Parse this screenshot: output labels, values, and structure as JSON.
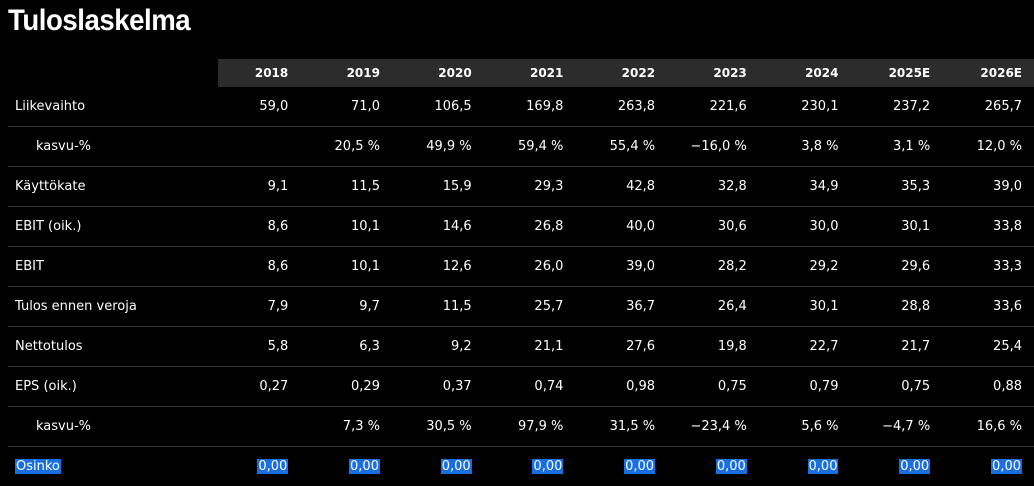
{
  "title": "Tuloslaskelma",
  "years": [
    "2018",
    "2019",
    "2020",
    "2021",
    "2022",
    "2023",
    "2024",
    "2025E",
    "2026E"
  ],
  "rows": [
    {
      "label": "Liikevaihto",
      "values": [
        "59,0",
        "71,0",
        "106,5",
        "169,8",
        "263,8",
        "221,6",
        "230,1",
        "237,2",
        "265,7"
      ]
    },
    {
      "label": "kasvu-%",
      "sub": true,
      "values": [
        "",
        "20,5 %",
        "49,9 %",
        "59,4 %",
        "55,4 %",
        "−16,0 %",
        "3,8 %",
        "3,1 %",
        "12,0 %"
      ]
    },
    {
      "label": "Käyttökate",
      "values": [
        "9,1",
        "11,5",
        "15,9",
        "29,3",
        "42,8",
        "32,8",
        "34,9",
        "35,3",
        "39,0"
      ]
    },
    {
      "label": "EBIT (oik.)",
      "values": [
        "8,6",
        "10,1",
        "14,6",
        "26,8",
        "40,0",
        "30,6",
        "30,0",
        "30,1",
        "33,8"
      ]
    },
    {
      "label": "EBIT",
      "values": [
        "8,6",
        "10,1",
        "12,6",
        "26,0",
        "39,0",
        "28,2",
        "29,2",
        "29,6",
        "33,3"
      ]
    },
    {
      "label": "Tulos ennen veroja",
      "values": [
        "7,9",
        "9,7",
        "11,5",
        "25,7",
        "36,7",
        "26,4",
        "30,1",
        "28,8",
        "33,6"
      ]
    },
    {
      "label": "Nettotulos",
      "values": [
        "5,8",
        "6,3",
        "9,2",
        "21,1",
        "27,6",
        "19,8",
        "22,7",
        "21,7",
        "25,4"
      ]
    },
    {
      "label": "EPS (oik.)",
      "values": [
        "0,27",
        "0,29",
        "0,37",
        "0,74",
        "0,98",
        "0,75",
        "0,79",
        "0,75",
        "0,88"
      ]
    },
    {
      "label": "kasvu-%",
      "sub": true,
      "values": [
        "",
        "7,3 %",
        "30,5 %",
        "97,9 %",
        "31,5 %",
        "−23,4 %",
        "5,6 %",
        "−4,7 %",
        "16,6 %"
      ]
    },
    {
      "label": "Osinko",
      "selected": true,
      "values": [
        "0,00",
        "0,00",
        "0,00",
        "0,00",
        "0,00",
        "0,00",
        "0,00",
        "0,00",
        "0,00"
      ]
    }
  ],
  "colors": {
    "background": "#000000",
    "header_band": "#2c2c2c",
    "selection": "#1a6fe0",
    "row_divider": "#333333"
  }
}
